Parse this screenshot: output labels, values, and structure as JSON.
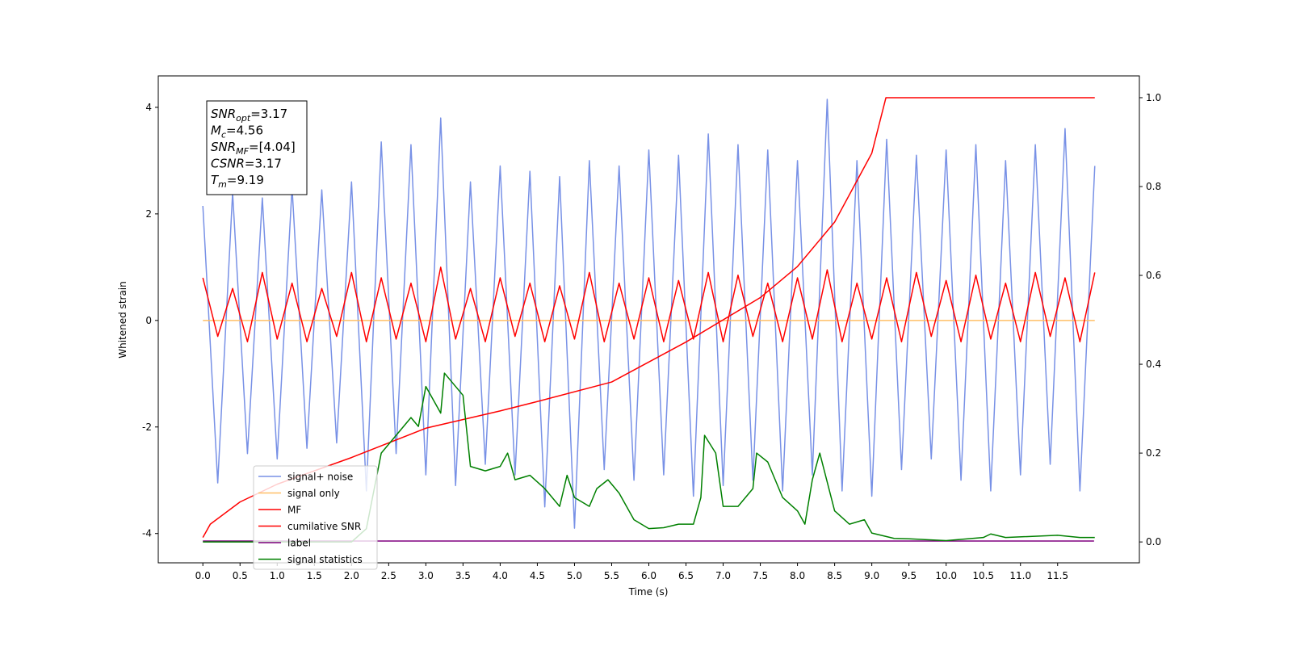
{
  "chart_data": {
    "type": "line",
    "xlabel": "Time (s)",
    "ylabel": "Whitened strain",
    "xlim": [
      -0.6,
      12.6
    ],
    "ylim": [
      -4.55,
      4.59
    ],
    "y2lim": [
      -0.047,
      1.049
    ],
    "xticks": [
      {
        "value": 0,
        "label": "0.0"
      },
      0.5,
      {
        "value": 1,
        "label": "1.0"
      },
      1.5,
      {
        "value": 2,
        "label": "2.0"
      },
      2.5,
      {
        "value": 3,
        "label": "3.0"
      },
      3.5,
      {
        "value": 4,
        "label": "4.0"
      },
      4.5,
      {
        "value": 5,
        "label": "5.0"
      },
      5.5,
      {
        "value": 6,
        "label": "6.0"
      },
      6.5,
      {
        "value": 7,
        "label": "7.0"
      },
      7.5,
      {
        "value": 8,
        "label": "8.0"
      },
      8.5,
      {
        "value": 9,
        "label": "9.0"
      },
      9.5,
      {
        "value": 10,
        "label": "10.0"
      },
      10.5,
      {
        "value": 11,
        "label": "11.0"
      },
      11.5
    ],
    "yticks": [
      -4,
      -2,
      0,
      2,
      4
    ],
    "y2ticks": [
      {
        "value": 0,
        "label": "0.0"
      },
      0.2,
      0.4,
      0.6,
      0.8,
      {
        "value": 1,
        "label": "1.0"
      }
    ],
    "legend_loc": "lower left",
    "x": [
      0,
      0.2,
      0.4,
      0.6,
      0.8,
      1.0,
      1.2,
      1.4,
      1.6,
      1.8,
      2.0,
      2.2,
      2.4,
      2.6,
      2.8,
      3.0,
      3.2,
      3.4,
      3.6,
      3.8,
      4.0,
      4.2,
      4.4,
      4.6,
      4.8,
      5.0,
      5.2,
      5.4,
      5.6,
      5.8,
      6.0,
      6.2,
      6.4,
      6.6,
      6.8,
      7.0,
      7.2,
      7.4,
      7.6,
      7.8,
      8.0,
      8.2,
      8.4,
      8.6,
      8.8,
      9.0,
      9.2,
      9.4,
      9.6,
      9.8,
      10.0,
      10.2,
      10.4,
      10.6,
      10.8,
      11.0,
      11.2,
      11.4,
      11.6,
      11.8,
      12.0
    ],
    "series": [
      {
        "name": "signal+ noise",
        "color": "#7891e6",
        "axis": "y",
        "values": [
          2.15,
          -3.05,
          2.4,
          -2.5,
          2.3,
          -2.6,
          2.5,
          -2.4,
          2.45,
          -2.3,
          2.6,
          -3.2,
          3.35,
          -2.5,
          3.3,
          -2.9,
          3.8,
          -3.1,
          2.6,
          -2.7,
          2.9,
          -2.9,
          2.8,
          -3.5,
          2.7,
          -3.9,
          3.0,
          -2.8,
          2.9,
          -3.0,
          3.2,
          -2.9,
          3.1,
          -3.3,
          3.5,
          -3.1,
          3.3,
          -3.0,
          3.2,
          -3.2,
          3.0,
          -2.9,
          4.15,
          -3.2,
          3.0,
          -3.3,
          3.4,
          -2.8,
          3.1,
          -2.6,
          3.2,
          -3.0,
          3.3,
          -3.2,
          3.0,
          -2.9,
          3.3,
          -2.7,
          3.6,
          -3.2,
          2.9
        ]
      },
      {
        "name": "signal only",
        "color": "#ffbf66",
        "axis": "y",
        "x": [
          0,
          12.0
        ],
        "values": [
          0,
          0
        ]
      },
      {
        "name": "MF",
        "color": "#ff0000",
        "axis": "y",
        "values": [
          0.8,
          -0.3,
          0.6,
          -0.4,
          0.9,
          -0.35,
          0.7,
          -0.4,
          0.6,
          -0.3,
          0.9,
          -0.4,
          0.8,
          -0.35,
          0.7,
          -0.4,
          1.0,
          -0.35,
          0.6,
          -0.4,
          0.8,
          -0.3,
          0.7,
          -0.4,
          0.65,
          -0.35,
          0.9,
          -0.4,
          0.7,
          -0.35,
          0.8,
          -0.4,
          0.75,
          -0.35,
          0.9,
          -0.4,
          0.85,
          -0.3,
          0.7,
          -0.4,
          0.8,
          -0.35,
          0.95,
          -0.4,
          0.7,
          -0.35,
          0.8,
          -0.4,
          0.9,
          -0.3,
          0.75,
          -0.4,
          0.85,
          -0.35,
          0.7,
          -0.4,
          0.9,
          -0.3,
          0.8,
          -0.4,
          0.9
        ]
      },
      {
        "name": "cumilative SNR",
        "color": "#ff0000",
        "axis": "y2",
        "x": [
          0,
          0.1,
          0.5,
          1.0,
          2.0,
          3.0,
          4.0,
          4.5,
          5.5,
          6.5,
          7.5,
          8.0,
          8.5,
          9.0,
          9.19,
          12.0
        ],
        "values": [
          0.01,
          0.04,
          0.09,
          0.13,
          0.19,
          0.256,
          0.295,
          0.316,
          0.36,
          0.45,
          0.55,
          0.62,
          0.72,
          0.875,
          1.0,
          1.0
        ]
      },
      {
        "name": "label",
        "color": "#800080",
        "axis": "y",
        "x": [
          0,
          11.99
        ],
        "values": [
          -4.14,
          -4.14
        ]
      },
      {
        "name": "signal statistics",
        "color": "#008000",
        "axis": "y2",
        "x": [
          0,
          2.0,
          2.2,
          2.4,
          2.6,
          2.8,
          2.9,
          3.0,
          3.1,
          3.2,
          3.25,
          3.4,
          3.5,
          3.6,
          3.8,
          4.0,
          4.1,
          4.2,
          4.4,
          4.6,
          4.8,
          4.9,
          5.0,
          5.2,
          5.3,
          5.45,
          5.6,
          5.8,
          6.0,
          6.2,
          6.4,
          6.6,
          6.7,
          6.75,
          6.9,
          7.0,
          7.2,
          7.4,
          7.45,
          7.6,
          7.8,
          8.0,
          8.1,
          8.2,
          8.3,
          8.5,
          8.7,
          8.9,
          9.0,
          9.3,
          9.5,
          10.0,
          10.5,
          10.6,
          10.8,
          11.5,
          11.8,
          12.0
        ],
        "values": [
          0.0,
          0.0,
          0.03,
          0.2,
          0.24,
          0.28,
          0.26,
          0.35,
          0.32,
          0.29,
          0.38,
          0.35,
          0.33,
          0.17,
          0.16,
          0.17,
          0.2,
          0.14,
          0.15,
          0.12,
          0.08,
          0.15,
          0.1,
          0.08,
          0.12,
          0.14,
          0.11,
          0.05,
          0.03,
          0.032,
          0.04,
          0.04,
          0.1,
          0.24,
          0.2,
          0.08,
          0.08,
          0.12,
          0.2,
          0.18,
          0.1,
          0.07,
          0.04,
          0.14,
          0.2,
          0.07,
          0.04,
          0.05,
          0.02,
          0.008,
          0.007,
          0.003,
          0.01,
          0.018,
          0.01,
          0.015,
          0.01,
          0.01
        ]
      }
    ],
    "annotation": [
      {
        "main": "SNR",
        "sub": "opt",
        "rest": "=3.17"
      },
      {
        "main": "M",
        "sub": "c",
        "rest": "=4.56"
      },
      {
        "main": "SNR",
        "sub": "MF",
        "rest": "=[4.04]"
      },
      {
        "main": "CSNR",
        "rest": "=3.17"
      },
      {
        "main": "T",
        "sub": "m",
        "rest": "=9.19"
      }
    ]
  }
}
